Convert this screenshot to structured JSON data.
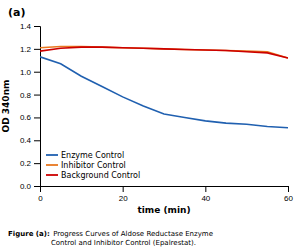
{
  "chart_data": {
    "type": "line",
    "title": "(a)",
    "x_label": "time (min)",
    "y_label": "OD 340nm",
    "x": [
      0,
      5,
      10,
      15,
      20,
      25,
      30,
      35,
      40,
      45,
      50,
      55,
      60
    ],
    "series": [
      {
        "name": "Enzyme Control",
        "color": "#2060b0",
        "values": [
          1.13,
          1.07,
          0.96,
          0.87,
          0.78,
          0.7,
          0.63,
          0.6,
          0.57,
          0.55,
          0.54,
          0.52,
          0.51
        ]
      },
      {
        "name": "Inhibitor Control",
        "color": "#e87820",
        "values": [
          1.21,
          1.22,
          1.22,
          1.215,
          1.21,
          1.205,
          1.2,
          1.195,
          1.19,
          1.185,
          1.18,
          1.175,
          1.12
        ]
      },
      {
        "name": "Background Control",
        "color": "#cc0000",
        "values": [
          1.18,
          1.205,
          1.215,
          1.215,
          1.21,
          1.205,
          1.2,
          1.195,
          1.19,
          1.185,
          1.175,
          1.165,
          1.12
        ]
      }
    ],
    "xlim": [
      0,
      60
    ],
    "xticks": [
      0,
      20,
      40,
      60
    ],
    "ylim": [
      0,
      1.4
    ],
    "yticks": [
      {
        "value": 0,
        "label": "0.0"
      },
      0.2,
      0.4,
      0.6,
      0.8,
      {
        "value": 1.0,
        "label": "1.0"
      },
      1.2,
      1.4
    ],
    "grid": false,
    "legend": "lower left",
    "annotations": [
      "Figure (a):",
      " Progress Curves of Aldose Reductase Enzyme\nControl and Inhibitor Control (Epalrestat)."
    ]
  }
}
